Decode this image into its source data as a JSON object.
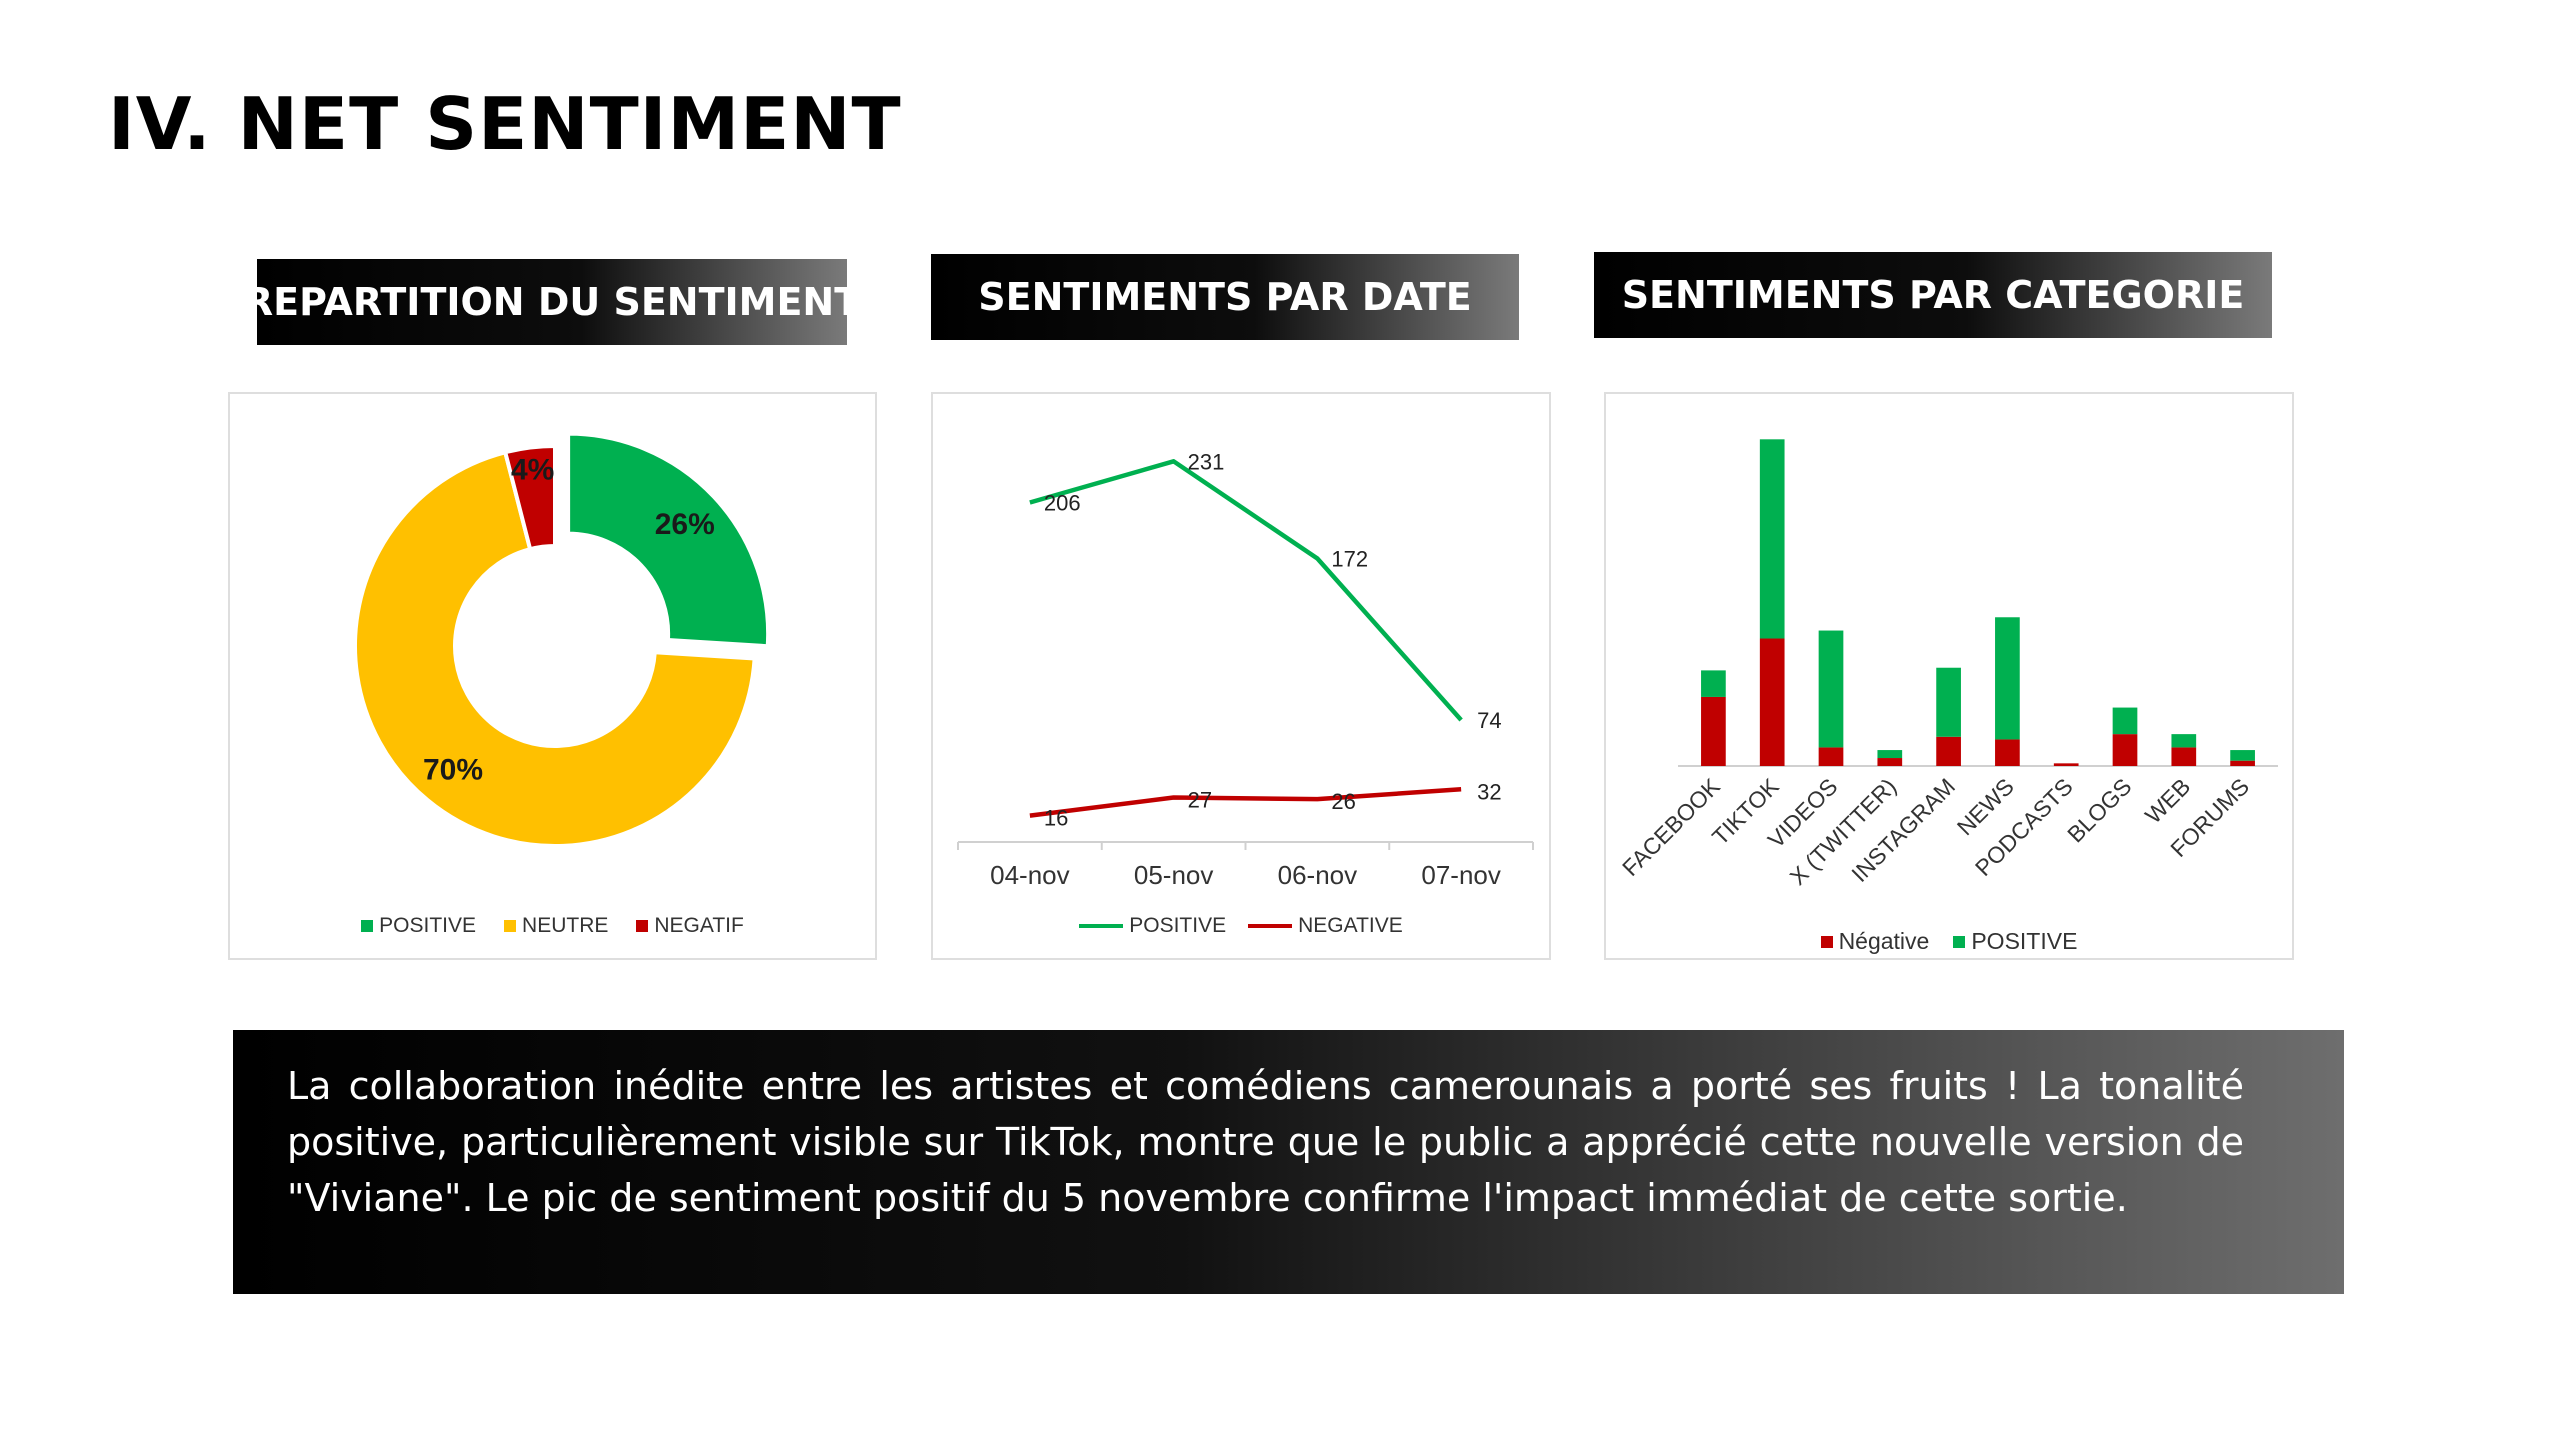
{
  "title": "IV. NET SENTIMENT",
  "panels": [
    {
      "header": "REPARTITION DU SENTIMENT"
    },
    {
      "header": "SENTIMENTS PAR DATE"
    },
    {
      "header": "SENTIMENTS PAR CATEGORIE"
    }
  ],
  "summary": "La collaboration inédite entre les artistes et comédiens camerounais a porté ses fruits ! La tonalité positive, particulièrement visible sur TikTok, montre que le public a apprécié cette nouvelle version de \"Viviane\". Le pic de sentiment positif du 5 novembre confirme l'impact immédiat de cette sortie.",
  "chart_data": [
    {
      "type": "pie",
      "title": "",
      "slices": [
        {
          "label": "POSITIVE",
          "value": 26,
          "display": "26%",
          "color": "#00b050"
        },
        {
          "label": "NEUTRE",
          "value": 70,
          "display": "70%",
          "color": "#ffc000"
        },
        {
          "label": "NEGATIF",
          "value": 4,
          "display": "4%",
          "color": "#c00000"
        }
      ],
      "legend_position": "bottom"
    },
    {
      "type": "line",
      "title": "",
      "categories": [
        "04-nov",
        "05-nov",
        "06-nov",
        "07-nov"
      ],
      "series": [
        {
          "name": "POSITIVE",
          "values": [
            206,
            231,
            172,
            74
          ],
          "color": "#00b050"
        },
        {
          "name": "NEGATIVE",
          "values": [
            16,
            27,
            26,
            32
          ],
          "color": "#c00000"
        }
      ],
      "ylim": [
        0,
        250
      ],
      "grid": false,
      "legend_position": "bottom"
    },
    {
      "type": "bar",
      "stacked": true,
      "title": "",
      "categories": [
        "FACEBOOK",
        "TIKTOK",
        "VIDEOS",
        "X (TWITTER)",
        "INSTAGRAM",
        "NEWS",
        "PODCASTS",
        "BLOGS",
        "WEB",
        "FORUMS"
      ],
      "series": [
        {
          "name": "Négative",
          "values": [
            26,
            48,
            7,
            3,
            11,
            10,
            1,
            12,
            7,
            2
          ],
          "color": "#c00000"
        },
        {
          "name": "POSITIVE",
          "values": [
            10,
            75,
            44,
            3,
            26,
            46,
            0,
            10,
            5,
            4
          ],
          "color": "#00b050"
        }
      ],
      "ylim": [
        0,
        125
      ],
      "grid": false,
      "legend_position": "bottom"
    }
  ]
}
